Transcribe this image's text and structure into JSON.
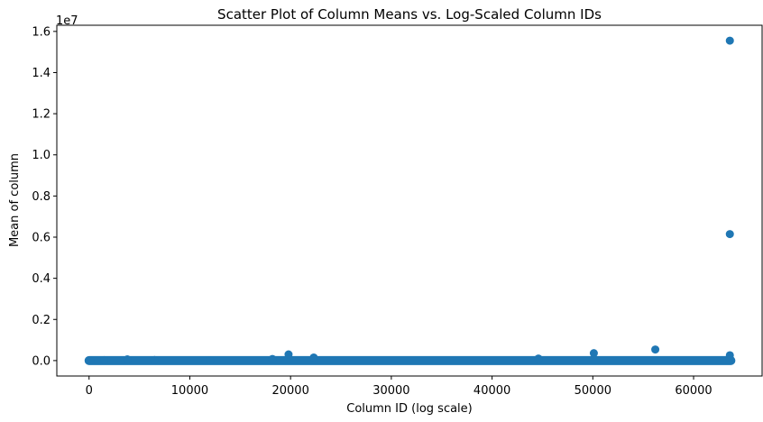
{
  "chart_data": {
    "type": "scatter",
    "title": "Scatter Plot of Column Means vs. Log-Scaled Column IDs",
    "xlabel": "Column ID (log scale)",
    "ylabel": "Mean of column",
    "y_offset_label": "1e7",
    "xlim": [
      -3200,
      66800
    ],
    "ylim": [
      -750000,
      16300000
    ],
    "x_ticks": [
      0,
      10000,
      20000,
      30000,
      40000,
      50000,
      60000
    ],
    "x_tick_labels": [
      "0",
      "10000",
      "20000",
      "30000",
      "40000",
      "50000",
      "60000"
    ],
    "y_ticks": [
      0,
      2000000,
      4000000,
      6000000,
      8000000,
      10000000,
      12000000,
      14000000,
      16000000
    ],
    "y_tick_labels": [
      "0.0",
      "0.2",
      "0.4",
      "0.6",
      "0.8",
      "1.0",
      "1.2",
      "1.4",
      "1.6"
    ],
    "grid": false,
    "color": "#1f77b4",
    "dense_band": {
      "x_from": 0,
      "x_to": 63700,
      "y": 0
    },
    "points": [
      {
        "x": 100,
        "y": 0
      },
      {
        "x": 1500,
        "y": 20000
      },
      {
        "x": 3800,
        "y": 60000
      },
      {
        "x": 6500,
        "y": 30000
      },
      {
        "x": 12000,
        "y": 10000
      },
      {
        "x": 18200,
        "y": 80000
      },
      {
        "x": 19800,
        "y": 300000
      },
      {
        "x": 22300,
        "y": 150000
      },
      {
        "x": 44600,
        "y": 100000
      },
      {
        "x": 50100,
        "y": 360000
      },
      {
        "x": 56200,
        "y": 540000
      },
      {
        "x": 63600,
        "y": 260000
      },
      {
        "x": 63600,
        "y": 6150000
      },
      {
        "x": 63600,
        "y": 15550000
      }
    ]
  }
}
